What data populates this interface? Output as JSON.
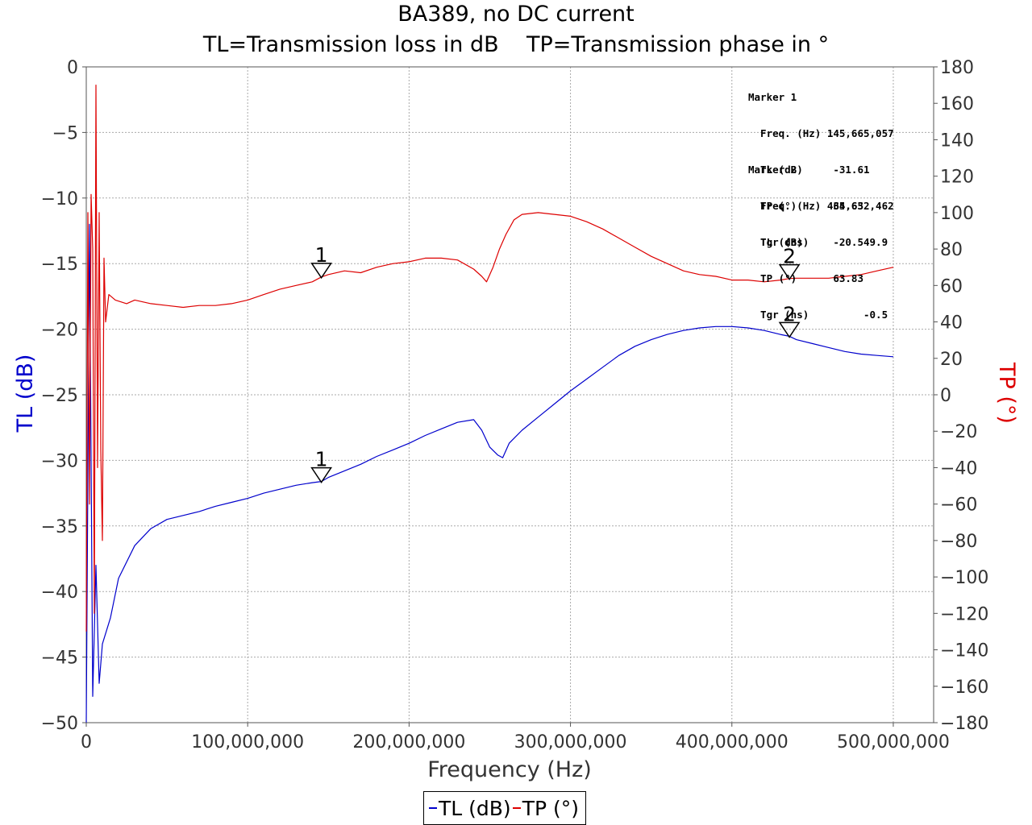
{
  "title_lines": [
    "BA389, no DC current",
    "TL=Transmission loss in dB    TP=Transmission phase in °"
  ],
  "colors": {
    "tl": "#0000cc",
    "tp": "#dd0000"
  },
  "markers_box": [
    {
      "name": "Marker 1",
      "rows": [
        "  Freq. (Hz) 145,665,057",
        "  TL (dB)     -31.61",
        "  TP (°)      64.65",
        "  Tgr (ns)          9.9"
      ]
    },
    {
      "name": "Marker 2",
      "rows": [
        "  Freq. (Hz) 435,632,462",
        "  TL (dB)     -20.54",
        "  TP (°)      63.83",
        "  Tgr (ns)         -0.5"
      ]
    }
  ],
  "legend": [
    {
      "label": "TL (dB)",
      "color": "#0000cc"
    },
    {
      "label": "TP (°)",
      "color": "#dd0000"
    }
  ],
  "chart_data": {
    "type": "line",
    "title": "BA389, no DC current",
    "subtitle": "TL=Transmission loss in dB    TP=Transmission phase in °",
    "xlabel": "Frequency (Hz)",
    "ylabel_left": "TL (dB)",
    "ylabel_right": "TP (°)",
    "xlim": [
      0,
      525000000
    ],
    "ylim_left": [
      -50,
      0
    ],
    "ylim_right": [
      -180,
      180
    ],
    "x_ticks": [
      0,
      100000000,
      200000000,
      300000000,
      400000000,
      500000000
    ],
    "x_tick_labels": [
      "0",
      "100,000,000",
      "200,000,000",
      "300,000,000",
      "400,000,000",
      "500,000,000"
    ],
    "y_left_ticks": [
      0,
      -5,
      -10,
      -15,
      -20,
      -25,
      -30,
      -35,
      -40,
      -45,
      -50
    ],
    "y_right_ticks": [
      180,
      160,
      140,
      120,
      100,
      80,
      60,
      40,
      20,
      0,
      -20,
      -40,
      -60,
      -80,
      -100,
      -120,
      -140,
      -160,
      -180
    ],
    "grid": true,
    "legend_position": "bottom-center",
    "series": [
      {
        "name": "TL (dB)",
        "axis": "left",
        "x": [
          0,
          2000000,
          4000000,
          6000000,
          8000000,
          10000000,
          15000000,
          20000000,
          30000000,
          40000000,
          50000000,
          60000000,
          70000000,
          80000000,
          90000000,
          100000000,
          110000000,
          120000000,
          130000000,
          140000000,
          145665057,
          150000000,
          160000000,
          170000000,
          180000000,
          190000000,
          200000000,
          210000000,
          220000000,
          230000000,
          240000000,
          245000000,
          250000000,
          255000000,
          258000000,
          262000000,
          270000000,
          280000000,
          290000000,
          300000000,
          310000000,
          320000000,
          330000000,
          340000000,
          350000000,
          360000000,
          370000000,
          380000000,
          390000000,
          400000000,
          410000000,
          420000000,
          430000000,
          435632462,
          440000000,
          450000000,
          460000000,
          470000000,
          480000000,
          490000000,
          500000000
        ],
        "values": [
          -50,
          -12,
          -48,
          -38,
          -47,
          -44,
          -42,
          -39,
          -36.5,
          -35.2,
          -34.5,
          -34.2,
          -33.9,
          -33.5,
          -33.2,
          -32.9,
          -32.5,
          -32.2,
          -31.9,
          -31.7,
          -31.61,
          -31.3,
          -30.8,
          -30.3,
          -29.7,
          -29.2,
          -28.7,
          -28.1,
          -27.6,
          -27.1,
          -26.9,
          -27.7,
          -29.0,
          -29.6,
          -29.8,
          -28.7,
          -27.7,
          -26.7,
          -25.7,
          -24.7,
          -23.8,
          -22.9,
          -22.0,
          -21.3,
          -20.8,
          -20.4,
          -20.1,
          -19.9,
          -19.8,
          -19.8,
          -19.9,
          -20.1,
          -20.4,
          -20.54,
          -20.8,
          -21.1,
          -21.4,
          -21.7,
          -21.9,
          -22.0,
          -22.1
        ]
      },
      {
        "name": "TP (°)",
        "axis": "right",
        "x": [
          0,
          1000000,
          2000000,
          3000000,
          4000000,
          5000000,
          6000000,
          7000000,
          8000000,
          9000000,
          10000000,
          11000000,
          12000000,
          14000000,
          18000000,
          25000000,
          30000000,
          40000000,
          50000000,
          60000000,
          70000000,
          80000000,
          90000000,
          100000000,
          110000000,
          120000000,
          130000000,
          140000000,
          145665057,
          150000000,
          160000000,
          170000000,
          180000000,
          190000000,
          200000000,
          210000000,
          220000000,
          230000000,
          240000000,
          245000000,
          248000000,
          252000000,
          256000000,
          260000000,
          265000000,
          270000000,
          280000000,
          290000000,
          300000000,
          310000000,
          320000000,
          330000000,
          340000000,
          350000000,
          360000000,
          370000000,
          380000000,
          390000000,
          400000000,
          410000000,
          420000000,
          430000000,
          435632462,
          440000000,
          450000000,
          460000000,
          470000000,
          480000000,
          490000000,
          500000000
        ],
        "values": [
          -130,
          100,
          -60,
          110,
          80,
          -120,
          170,
          -40,
          100,
          -30,
          -80,
          75,
          40,
          55,
          52,
          50,
          52,
          50,
          49,
          48,
          49,
          49,
          50,
          52,
          55,
          58,
          60,
          62,
          64.65,
          66,
          68,
          67,
          70,
          72,
          73,
          75,
          75,
          74,
          69,
          65,
          62,
          70,
          80,
          88,
          96,
          99,
          100,
          99,
          98,
          95,
          91,
          86,
          81,
          76,
          72,
          68,
          66,
          65,
          63,
          63,
          62,
          63,
          63.83,
          64,
          64,
          64,
          65,
          66,
          68,
          70
        ]
      }
    ],
    "markers": [
      {
        "label": "1",
        "x": 145665057,
        "tl": -31.61,
        "tp": 64.65,
        "tgr": 9.9
      },
      {
        "label": "2",
        "x": 435632462,
        "tl": -20.54,
        "tp": 63.83,
        "tgr": -0.5
      }
    ]
  }
}
